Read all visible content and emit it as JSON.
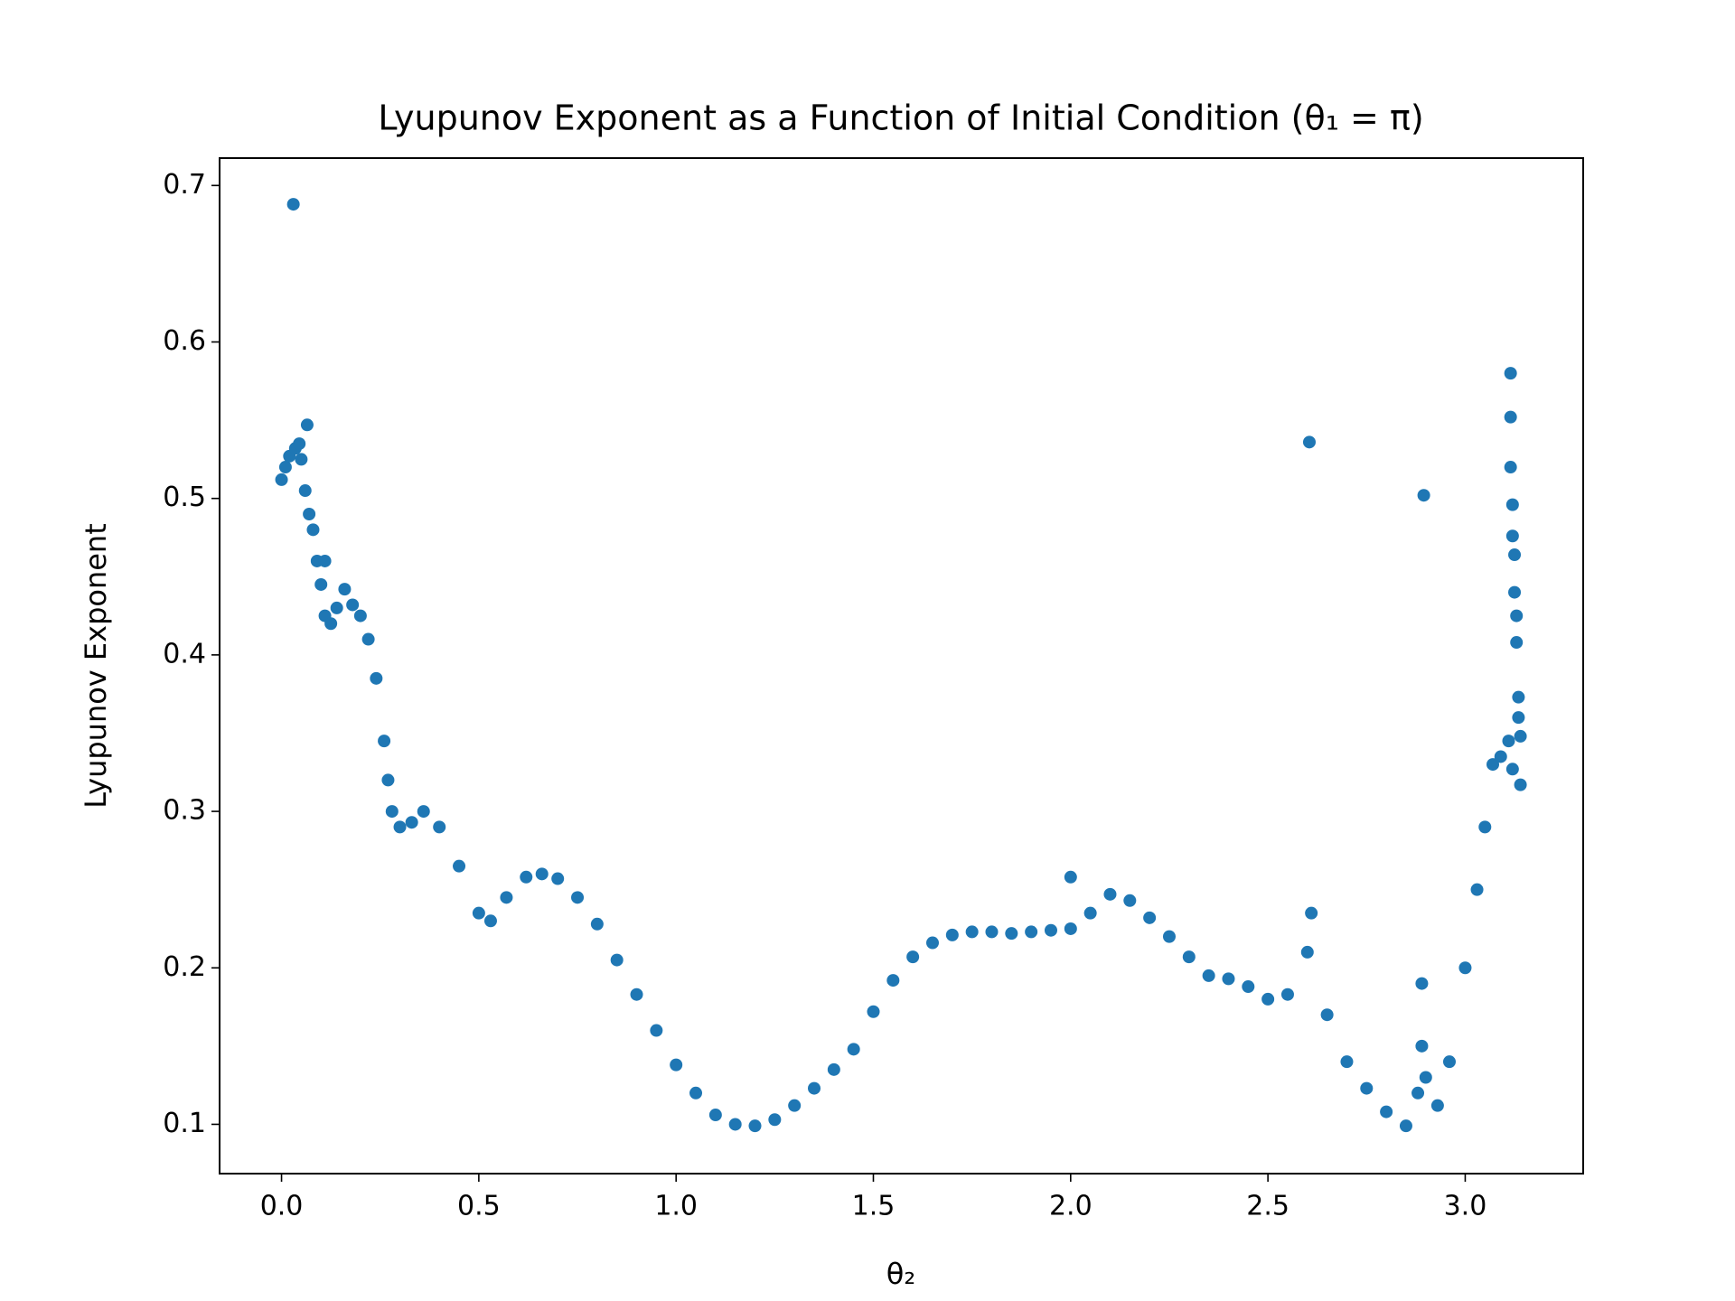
{
  "chart_data": {
    "type": "scatter",
    "title": "Lyupunov Exponent as a Function of Initial Condition (θ₁ = π)",
    "xlabel": "θ₂",
    "ylabel": "Lyupunov Exponent",
    "color": "#1f77b4",
    "xlim": [
      -0.157,
      3.299
    ],
    "ylim": [
      0.0685,
      0.7175
    ],
    "xticks": [
      {
        "value": 0,
        "label": "0.0"
      },
      {
        "value": 0.5,
        "label": "0.5"
      },
      {
        "value": 1,
        "label": "1.0"
      },
      {
        "value": 1.5,
        "label": "1.5"
      },
      {
        "value": 2,
        "label": "2.0"
      },
      {
        "value": 2.5,
        "label": "2.5"
      },
      {
        "value": 3,
        "label": "3.0"
      }
    ],
    "yticks": [
      0.1,
      0.2,
      0.3,
      0.4,
      0.5,
      0.6,
      0.7
    ],
    "grid": false,
    "x": [
      0.0,
      0.01,
      0.02,
      0.03,
      0.035,
      0.045,
      0.05,
      0.065,
      0.06,
      0.07,
      0.08,
      0.09,
      0.1,
      0.11,
      0.11,
      0.125,
      0.14,
      0.16,
      0.18,
      0.2,
      0.22,
      0.24,
      0.26,
      0.27,
      0.28,
      0.3,
      0.33,
      0.36,
      0.4,
      0.45,
      0.5,
      0.53,
      0.57,
      0.62,
      0.66,
      0.7,
      0.75,
      0.8,
      0.85,
      0.9,
      0.95,
      1.0,
      1.05,
      1.1,
      1.15,
      1.2,
      1.25,
      1.3,
      1.35,
      1.4,
      1.45,
      1.5,
      1.55,
      1.6,
      1.65,
      1.7,
      1.75,
      1.8,
      1.85,
      1.9,
      1.95,
      2.0,
      2.0,
      2.05,
      2.1,
      2.15,
      2.2,
      2.25,
      2.3,
      2.35,
      2.4,
      2.45,
      2.5,
      2.55,
      2.6,
      2.61,
      2.605,
      2.65,
      2.7,
      2.75,
      2.8,
      2.85,
      2.88,
      2.89,
      2.89,
      2.895,
      2.9,
      2.93,
      2.96,
      3.0,
      3.03,
      3.05,
      3.07,
      3.09,
      3.11,
      3.115,
      3.115,
      3.115,
      3.12,
      3.12,
      3.125,
      3.125,
      3.13,
      3.13,
      3.135,
      3.135,
      3.14,
      3.14,
      3.12
    ],
    "values": [
      0.512,
      0.52,
      0.527,
      0.688,
      0.532,
      0.535,
      0.525,
      0.547,
      0.505,
      0.49,
      0.48,
      0.46,
      0.445,
      0.46,
      0.425,
      0.42,
      0.43,
      0.442,
      0.432,
      0.425,
      0.41,
      0.385,
      0.345,
      0.32,
      0.3,
      0.29,
      0.293,
      0.3,
      0.29,
      0.265,
      0.235,
      0.23,
      0.245,
      0.258,
      0.26,
      0.257,
      0.245,
      0.228,
      0.205,
      0.183,
      0.16,
      0.138,
      0.12,
      0.106,
      0.1,
      0.099,
      0.103,
      0.112,
      0.123,
      0.135,
      0.148,
      0.172,
      0.192,
      0.207,
      0.216,
      0.221,
      0.223,
      0.223,
      0.222,
      0.223,
      0.224,
      0.258,
      0.225,
      0.235,
      0.247,
      0.243,
      0.232,
      0.22,
      0.207,
      0.195,
      0.193,
      0.188,
      0.18,
      0.183,
      0.21,
      0.235,
      0.536,
      0.17,
      0.14,
      0.123,
      0.108,
      0.099,
      0.12,
      0.19,
      0.15,
      0.502,
      0.13,
      0.112,
      0.14,
      0.2,
      0.25,
      0.29,
      0.33,
      0.335,
      0.345,
      0.58,
      0.552,
      0.52,
      0.496,
      0.476,
      0.464,
      0.44,
      0.425,
      0.408,
      0.373,
      0.36,
      0.348,
      0.317,
      0.327
    ]
  }
}
